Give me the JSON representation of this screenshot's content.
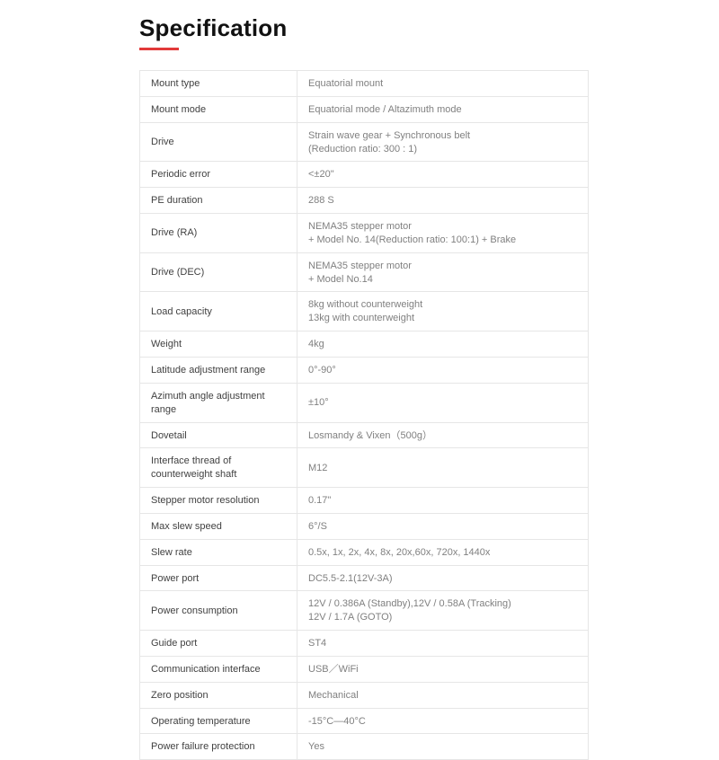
{
  "title": "Specification",
  "underline_color": "#e23a3a",
  "table": {
    "label_color": "#414141",
    "value_color": "#808080",
    "border_color": "#e6e6e6",
    "rows": [
      {
        "label": "Mount type",
        "value": "Equatorial mount"
      },
      {
        "label": "Mount mode",
        "value": "Equatorial mode / Altazimuth mode"
      },
      {
        "label": "Drive",
        "value": "Strain wave gear + Synchronous belt\n(Reduction ratio: 300 : 1)"
      },
      {
        "label": "Periodic error",
        "value": "<±20\""
      },
      {
        "label": "PE duration",
        "value": "288 S"
      },
      {
        "label": "Drive (RA)",
        "value": "NEMA35 stepper motor\n+ Model No. 14(Reduction ratio: 100:1) + Brake"
      },
      {
        "label": "Drive (DEC)",
        "value": "NEMA35 stepper motor\n+ Model No.14"
      },
      {
        "label": "Load capacity",
        "value": "8kg without counterweight\n13kg with counterweight"
      },
      {
        "label": "Weight",
        "value": "4kg"
      },
      {
        "label": "Latitude adjustment range",
        "value": "0°-90°"
      },
      {
        "label": "Azimuth angle adjustment range",
        "value": "±10°"
      },
      {
        "label": "Dovetail",
        "value": "Losmandy & Vixen（500g）"
      },
      {
        "label": "Interface thread of counterweight shaft",
        "value": "M12"
      },
      {
        "label": "Stepper motor resolution",
        "value": "0.17\""
      },
      {
        "label": "Max slew speed",
        "value": "6°/S"
      },
      {
        "label": "Slew rate",
        "value": "0.5x, 1x, 2x, 4x, 8x, 20x,60x, 720x, 1440x"
      },
      {
        "label": "Power port",
        "value": "DC5.5-2.1(12V-3A)"
      },
      {
        "label": "Power consumption",
        "value": "12V / 0.386A (Standby),12V / 0.58A (Tracking)\n12V / 1.7A (GOTO)"
      },
      {
        "label": "Guide port",
        "value": "ST4"
      },
      {
        "label": "Communication interface",
        "value": "USB／WiFi"
      },
      {
        "label": "Zero position",
        "value": "Mechanical"
      },
      {
        "label": "Operating temperature",
        "value": "-15°C—40°C"
      },
      {
        "label": "Power failure protection",
        "value": "Yes"
      }
    ]
  }
}
